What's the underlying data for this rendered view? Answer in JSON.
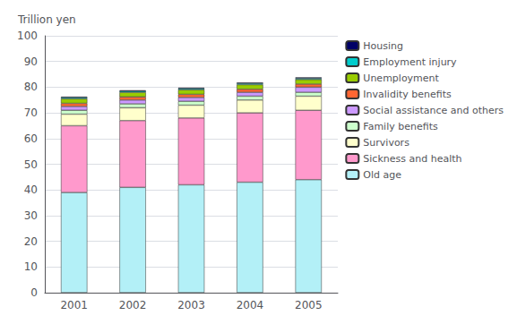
{
  "chart_data": {
    "type": "bar",
    "stacked": true,
    "ylabel": "Trillion yen",
    "categories": [
      "2001",
      "2002",
      "2003",
      "2004",
      "2005"
    ],
    "series": [
      {
        "name": "Old age",
        "color": "#b3f0f7",
        "values": [
          39.0,
          41.0,
          42.0,
          43.0,
          44.0
        ]
      },
      {
        "name": "Sickness and health",
        "color": "#ff99cc",
        "values": [
          26.0,
          26.0,
          26.0,
          27.0,
          27.0
        ]
      },
      {
        "name": "Survivors",
        "color": "#ffffcc",
        "values": [
          4.5,
          5.0,
          5.0,
          5.0,
          5.5
        ]
      },
      {
        "name": "Family benefits",
        "color": "#ccffcc",
        "values": [
          1.5,
          1.5,
          1.5,
          1.5,
          1.5
        ]
      },
      {
        "name": "Social assistance and others",
        "color": "#cc99ff",
        "values": [
          1.5,
          1.5,
          1.5,
          1.5,
          2.0
        ]
      },
      {
        "name": "Invalidity benefits",
        "color": "#ff6633",
        "values": [
          1.2,
          1.2,
          1.2,
          1.2,
          1.2
        ]
      },
      {
        "name": "Unemployment",
        "color": "#99cc00",
        "values": [
          1.8,
          1.8,
          1.8,
          1.8,
          1.8
        ]
      },
      {
        "name": "Employment injury",
        "color": "#00cccc",
        "values": [
          0.5,
          0.5,
          0.5,
          0.5,
          0.5
        ]
      },
      {
        "name": "Housing",
        "color": "#000066",
        "values": [
          0.3,
          0.3,
          0.3,
          0.3,
          0.3
        ]
      }
    ],
    "ylim": [
      0,
      100
    ],
    "yticks": [
      0,
      10,
      20,
      30,
      40,
      50,
      60,
      70,
      80,
      90,
      100
    ],
    "grid": true,
    "legend": "right"
  }
}
